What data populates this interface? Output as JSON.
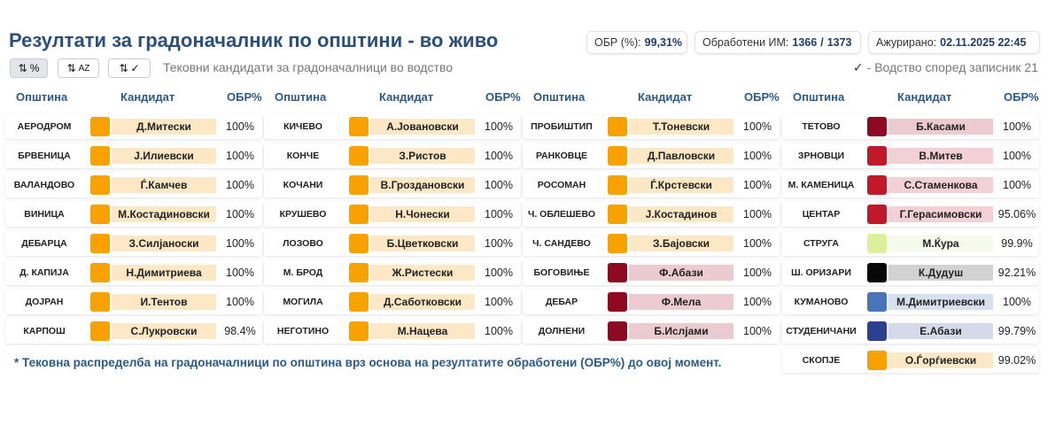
{
  "header": {
    "title": "Резултати за градоначалник по општини - во живо",
    "turnout_label": "ОБР (%):",
    "turnout_value": "99,31%",
    "processed_label": "Обработени ИМ:",
    "processed_value": "1366",
    "processed_sep": "/",
    "processed_total": "1373",
    "updated_label": "Ажурирано:",
    "updated_value": "02.11.2025 22:45"
  },
  "toolbar": {
    "sort_pct_label": "%",
    "sort_alpha_label": "AZ",
    "sort_check_label": "✓",
    "sort_arrows": "⇅",
    "subtitle": "Тековни кандидати за градоначалници во водство",
    "legend_check": "✓",
    "legend_text": "- Водство според записник 21"
  },
  "table_headers": {
    "municipality": "Општина",
    "candidate": "Кандидат",
    "pct": "ОБР%"
  },
  "columns": [
    {
      "rows": [
        {
          "municipality": "АЕРОДРОМ",
          "candidate": "Д.Митески",
          "pct": "100%",
          "color": "#f7a200",
          "bg": "#fde8c6"
        },
        {
          "municipality": "БРВЕНИЦА",
          "candidate": "Ј.Илиевски",
          "pct": "100%",
          "color": "#f7a200",
          "bg": "#fde8c6"
        },
        {
          "municipality": "ВАЛАНДОВО",
          "candidate": "Ѓ.Камчев",
          "pct": "100%",
          "color": "#f7a200",
          "bg": "#fde8c6"
        },
        {
          "municipality": "ВИНИЦА",
          "candidate": "М.Костадиновски",
          "pct": "100%",
          "color": "#f7a200",
          "bg": "#fde8c6"
        },
        {
          "municipality": "ДЕБАРЦА",
          "candidate": "З.Силјаноски",
          "pct": "100%",
          "color": "#f7a200",
          "bg": "#fde8c6"
        },
        {
          "municipality": "Д. КАПИЈА",
          "candidate": "Н.Димитриева",
          "pct": "100%",
          "color": "#f7a200",
          "bg": "#fde8c6"
        },
        {
          "municipality": "ДОЈРАН",
          "candidate": "И.Тентов",
          "pct": "100%",
          "color": "#f7a200",
          "bg": "#fde8c6"
        },
        {
          "municipality": "КАРПОШ",
          "candidate": "С.Лукровски",
          "pct": "98.4%",
          "color": "#f7a200",
          "bg": "#fde8c6"
        }
      ]
    },
    {
      "rows": [
        {
          "municipality": "КИЧЕВО",
          "candidate": "А.Јовановски",
          "pct": "100%",
          "color": "#f7a200",
          "bg": "#fde8c6"
        },
        {
          "municipality": "КОНЧЕ",
          "candidate": "З.Ристов",
          "pct": "100%",
          "color": "#f7a200",
          "bg": "#fde8c6"
        },
        {
          "municipality": "КОЧАНИ",
          "candidate": "В.Гроздановски",
          "pct": "100%",
          "color": "#f7a200",
          "bg": "#fde8c6"
        },
        {
          "municipality": "КРУШЕВО",
          "candidate": "Н.Чонески",
          "pct": "100%",
          "color": "#f7a200",
          "bg": "#fde8c6"
        },
        {
          "municipality": "ЛОЗОВО",
          "candidate": "Б.Цветковски",
          "pct": "100%",
          "color": "#f7a200",
          "bg": "#fde8c6"
        },
        {
          "municipality": "М. БРОД",
          "candidate": "Ж.Ристески",
          "pct": "100%",
          "color": "#f7a200",
          "bg": "#fde8c6"
        },
        {
          "municipality": "МОГИЛА",
          "candidate": "Д.Саботковски",
          "pct": "100%",
          "color": "#f7a200",
          "bg": "#fde8c6"
        },
        {
          "municipality": "НЕГОТИНО",
          "candidate": "М.Нацева",
          "pct": "100%",
          "color": "#f7a200",
          "bg": "#fde8c6"
        }
      ]
    },
    {
      "rows": [
        {
          "municipality": "ПРОБИШТИП",
          "candidate": "Т.Тоневски",
          "pct": "100%",
          "color": "#f7a200",
          "bg": "#fde8c6"
        },
        {
          "municipality": "РАНКОВЦЕ",
          "candidate": "Д.Павловски",
          "pct": "100%",
          "color": "#f7a200",
          "bg": "#fde8c6"
        },
        {
          "municipality": "РОСОМАН",
          "candidate": "Ѓ.Крстевски",
          "pct": "100%",
          "color": "#f7a200",
          "bg": "#fde8c6"
        },
        {
          "municipality": "Ч. ОБЛЕШЕВО",
          "candidate": "Ј.Костадинов",
          "pct": "100%",
          "color": "#f7a200",
          "bg": "#fde8c6"
        },
        {
          "municipality": "Ч. САНДЕВО",
          "candidate": "З.Бајовски",
          "pct": "100%",
          "color": "#f7a200",
          "bg": "#fde8c6"
        },
        {
          "municipality": "БОГОВИЊЕ",
          "candidate": "Ф.Абази",
          "pct": "100%",
          "color": "#8e0a22",
          "bg": "#ebcbd0"
        },
        {
          "municipality": "ДЕБАР",
          "candidate": "Ф.Мела",
          "pct": "100%",
          "color": "#8e0a22",
          "bg": "#ebcbd0"
        },
        {
          "municipality": "ДОЛНЕНИ",
          "candidate": "Б.Ислјами",
          "pct": "100%",
          "color": "#8e0a22",
          "bg": "#ebcbd0"
        }
      ]
    },
    {
      "rows": [
        {
          "municipality": "ТЕТОВО",
          "candidate": "Б.Касами",
          "pct": "100%",
          "color": "#8e0a22",
          "bg": "#ebcbd0"
        },
        {
          "municipality": "ЗРНОВЦИ",
          "candidate": "В.Митев",
          "pct": "100%",
          "color": "#c01a2a",
          "bg": "#f2d0d3"
        },
        {
          "municipality": "М. КАМЕНИЦА",
          "candidate": "С.Стаменкова",
          "pct": "100%",
          "color": "#c01a2a",
          "bg": "#f2d0d3"
        },
        {
          "municipality": "ЦЕНТАР",
          "candidate": "Г.Герасимовски",
          "pct": "95.06%",
          "color": "#c01a2a",
          "bg": "#f2d0d3"
        },
        {
          "municipality": "СТРУГА",
          "candidate": "М.Ќура",
          "pct": "99.9%",
          "color": "#dcef9a",
          "bg": "#f5faea"
        },
        {
          "municipality": "Ш. ОРИЗАРИ",
          "candidate": "К.Дудуш",
          "pct": "92.21%",
          "color": "#080808",
          "bg": "#d2d2d2"
        },
        {
          "municipality": "КУМАНОВО",
          "candidate": "М.Димитриевски",
          "pct": "100%",
          "color": "#4a74b8",
          "bg": "#d6e0ef"
        },
        {
          "municipality": "СТУДЕНИЧАНИ",
          "candidate": "Е.Абази",
          "pct": "99.79%",
          "color": "#2d3f8f",
          "bg": "#d5daea"
        },
        {
          "municipality": "СКОПЈЕ",
          "candidate": "О.Ѓорѓиевски",
          "pct": "99.02%",
          "color": "#f7a200",
          "bg": "#fde8c6"
        }
      ]
    }
  ],
  "footnote": "* Тековна распределба на градоначалници по општина врз основа на резултатите обработени (ОБР%) до овој момент."
}
